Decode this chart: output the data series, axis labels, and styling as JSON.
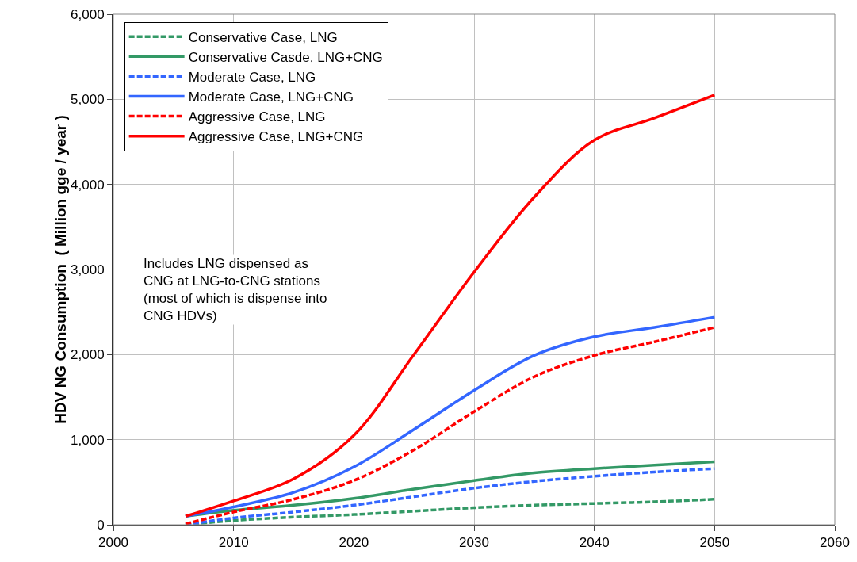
{
  "chart_data": {
    "type": "line",
    "ylabel": "HDV NG Consumption  ( Million gge / year )",
    "annotations": [
      "Includes LNG dispensed as\nCNG at LNG-to-CNG stations\n(most of which is dispense into\nCNG HDVs)"
    ],
    "x": [
      2006,
      2010,
      2015,
      2020,
      2025,
      2030,
      2035,
      2040,
      2045,
      2050
    ],
    "series": [
      {
        "name": "Conservative Case, LNG",
        "color": "#339966",
        "line_style": "dashed",
        "values": [
          0,
          50,
          90,
          120,
          160,
          200,
          230,
          250,
          270,
          300
        ]
      },
      {
        "name": "Conservative Casde, LNG+CNG",
        "color": "#339966",
        "line_style": "solid",
        "values": [
          100,
          170,
          230,
          310,
          420,
          520,
          610,
          660,
          700,
          740
        ]
      },
      {
        "name": "Moderate Case, LNG",
        "color": "#3366ff",
        "line_style": "dashed",
        "values": [
          0,
          80,
          150,
          230,
          330,
          430,
          510,
          570,
          620,
          660
        ]
      },
      {
        "name": "Moderate Case, LNG+CNG",
        "color": "#3366ff",
        "line_style": "solid",
        "values": [
          100,
          210,
          380,
          680,
          1120,
          1580,
          1990,
          2210,
          2320,
          2440
        ]
      },
      {
        "name": "Aggressive Case, LNG",
        "color": "#ff0000",
        "line_style": "dashed",
        "values": [
          10,
          150,
          300,
          520,
          880,
          1330,
          1740,
          1990,
          2150,
          2320
        ]
      },
      {
        "name": "Aggressive Case, LNG+CNG",
        "color": "#ff0000",
        "line_style": "solid",
        "values": [
          100,
          280,
          540,
          1050,
          2000,
          2970,
          3850,
          4520,
          4780,
          5050
        ]
      }
    ],
    "xlim": [
      2000,
      2060
    ],
    "xticks": [
      2000,
      2010,
      2020,
      2030,
      2040,
      2050,
      2060
    ],
    "ylim": [
      0,
      6000
    ],
    "yticks": [
      {
        "value": 0,
        "label": "0"
      },
      {
        "value": 1000,
        "label": "1,000"
      },
      {
        "value": 2000,
        "label": "2,000"
      },
      {
        "value": 3000,
        "label": "3,000"
      },
      {
        "value": 4000,
        "label": "4,000"
      },
      {
        "value": 5000,
        "label": "5,000"
      },
      {
        "value": 6000,
        "label": "6,000"
      }
    ],
    "grid": true,
    "legend": "top left",
    "marker": "none"
  }
}
